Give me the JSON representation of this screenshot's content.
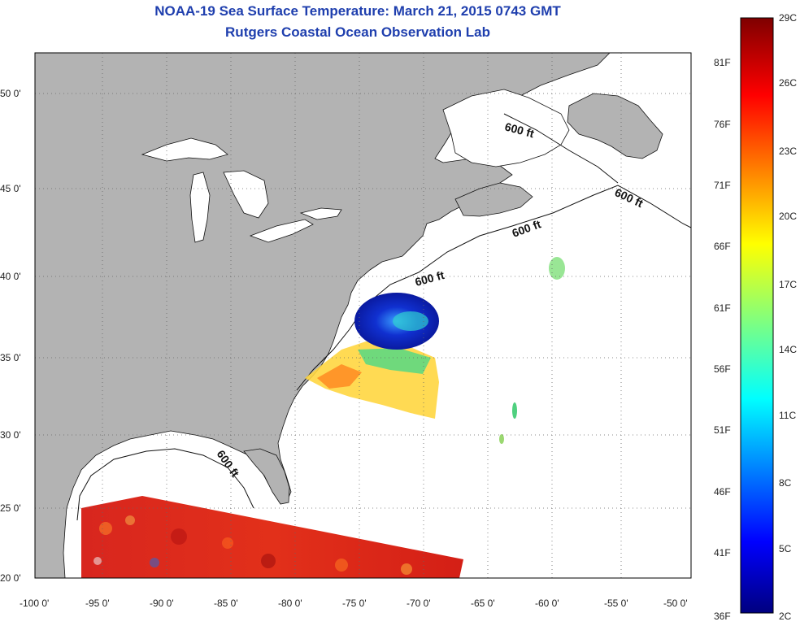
{
  "title": "NOAA-19 Sea Surface Temperature:  March 21, 2015 0743 GMT",
  "subtitle": "Rutgers Coastal Ocean Observation Lab",
  "x_ticks": [
    "-100 0'",
    "-95 0'",
    "-90 0'",
    "-85 0'",
    "-80 0'",
    "-75 0'",
    "-70 0'",
    "-65 0'",
    "-60 0'",
    "-55 0'",
    "-50 0'"
  ],
  "y_ticks": [
    "20 0'",
    "25 0'",
    "30 0'",
    "35 0'",
    "40 0'",
    "45 0'",
    "50 0'"
  ],
  "contour_label": "600 ft",
  "colorbar": {
    "celsius": [
      "29C",
      "26C",
      "23C",
      "20C",
      "17C",
      "14C",
      "11C",
      "8C",
      "5C",
      "2C"
    ],
    "fahrenheit": [
      "81F",
      "76F",
      "71F",
      "66F",
      "61F",
      "56F",
      "51F",
      "46F",
      "41F",
      "36F"
    ]
  },
  "colors": {
    "land": "#b3b3b3",
    "title": "#1f3fae",
    "grid": "#666666"
  }
}
